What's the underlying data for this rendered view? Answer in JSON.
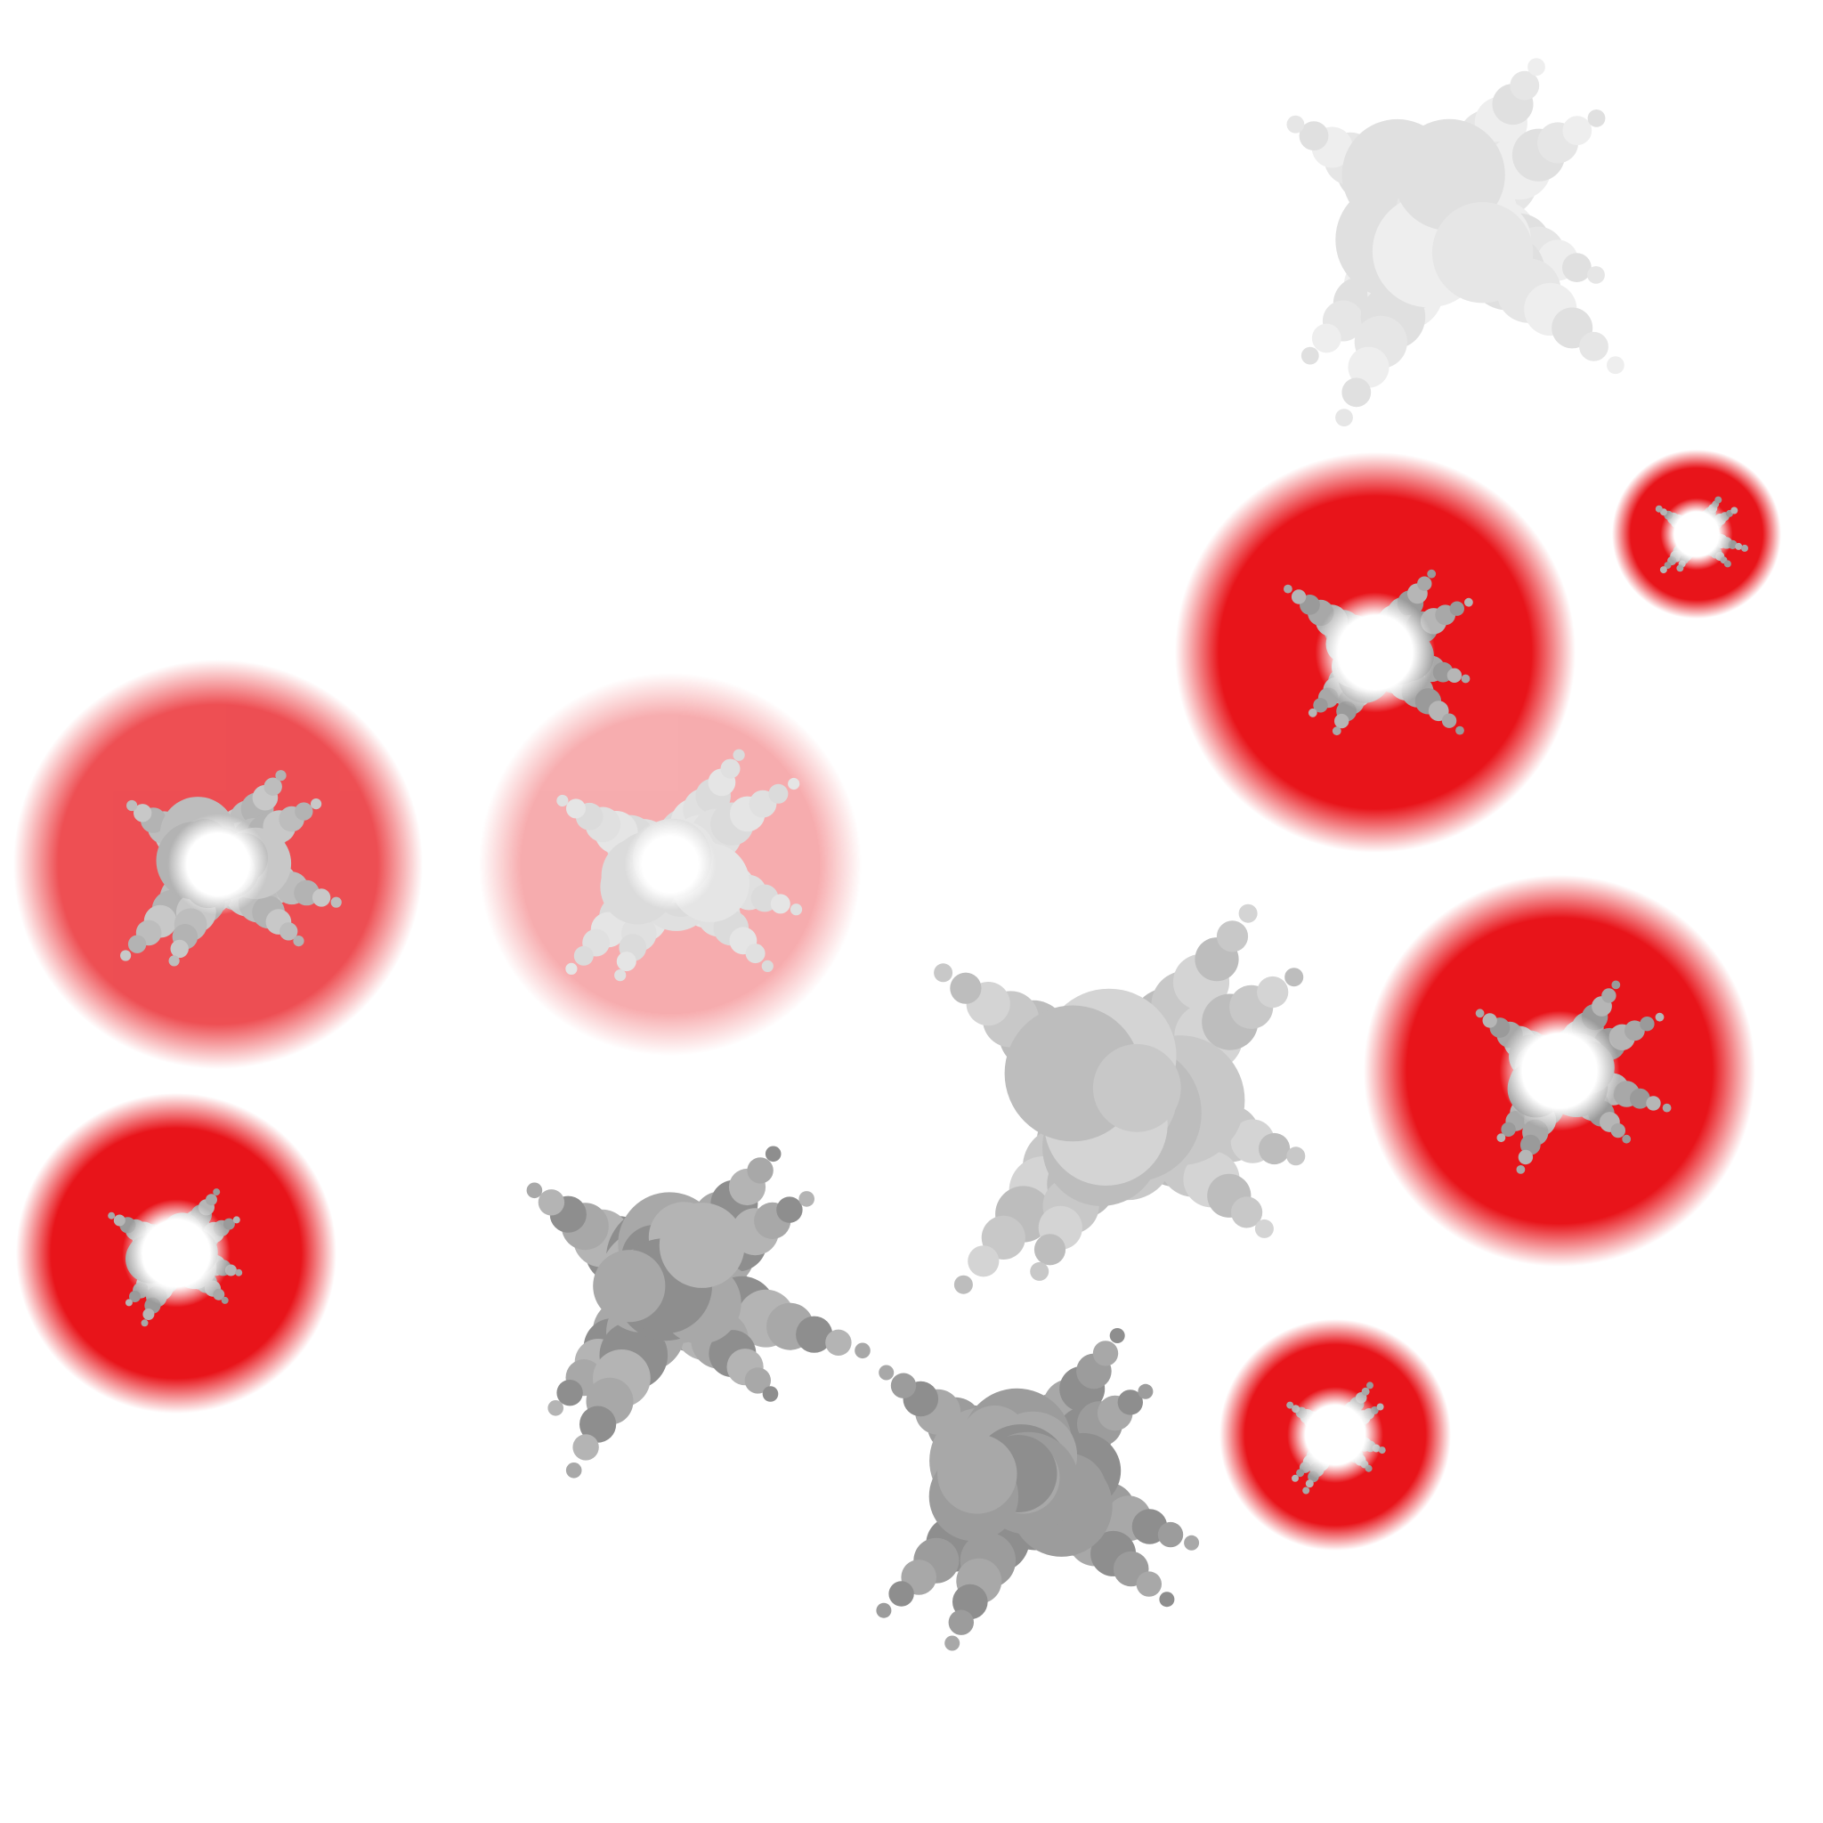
{
  "sheet": {
    "background": "#ffffff"
  },
  "palette": {
    "red_glow": "#e8141a",
    "core_white": "#ffffff",
    "smoke_dark": "#8e8e8e",
    "smoke_mid": "#a8a8a8",
    "smoke_light": "#c8c8c8",
    "smoke_faint": "#e6e6e6"
  },
  "frames": [
    {
      "id": "explosion-frame-1",
      "kind": "flash-small",
      "opacity": 1.0
    },
    {
      "id": "explosion-frame-2",
      "kind": "flash-small",
      "opacity": 1.0
    },
    {
      "id": "explosion-frame-3",
      "kind": "flash-burst",
      "opacity": 1.0
    },
    {
      "id": "explosion-frame-4",
      "kind": "flash-burst",
      "opacity": 1.0
    },
    {
      "id": "explosion-frame-5",
      "kind": "flash-burst",
      "opacity": 1.0
    },
    {
      "id": "explosion-frame-6",
      "kind": "flash-burst",
      "opacity": 0.75
    },
    {
      "id": "explosion-frame-7",
      "kind": "flash-burst",
      "opacity": 0.35
    },
    {
      "id": "explosion-frame-8",
      "kind": "smoke",
      "opacity": 1.0
    },
    {
      "id": "explosion-frame-9",
      "kind": "smoke",
      "opacity": 1.0
    },
    {
      "id": "explosion-frame-10",
      "kind": "smoke",
      "opacity": 1.0
    },
    {
      "id": "explosion-frame-11",
      "kind": "smoke",
      "opacity": 1.0
    }
  ]
}
